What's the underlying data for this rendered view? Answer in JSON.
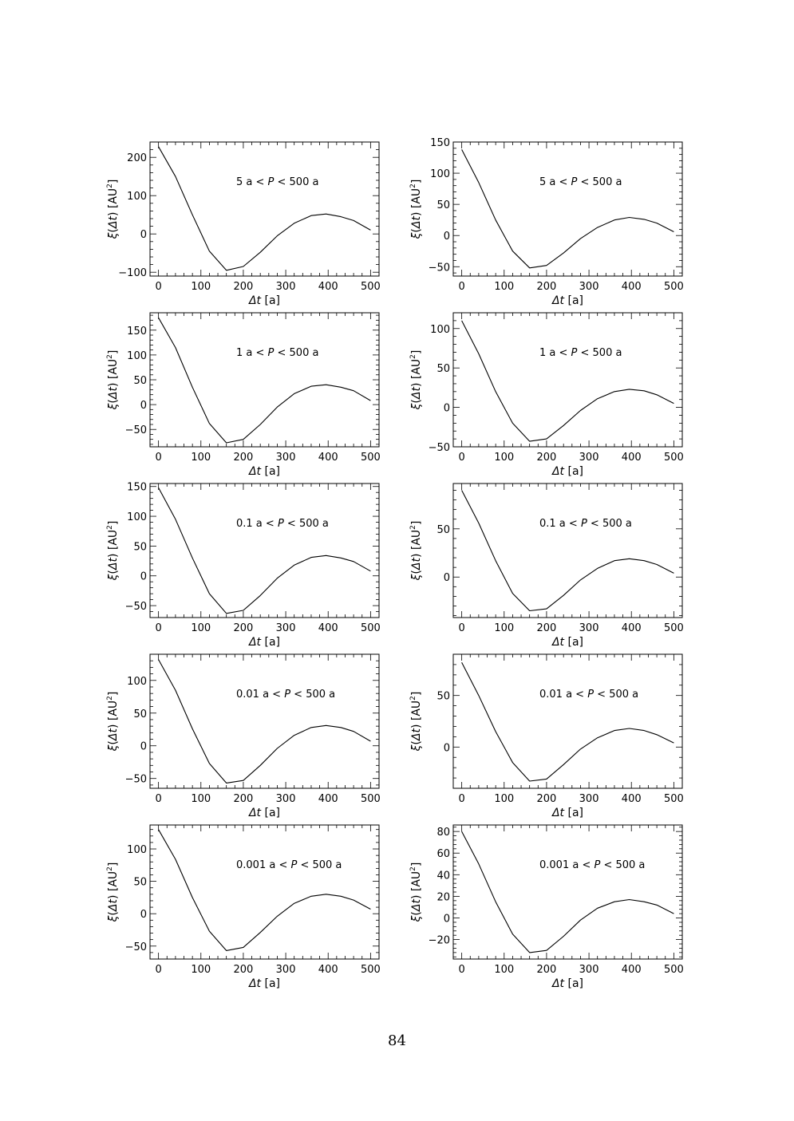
{
  "page_number": "84",
  "chart_data": [
    {
      "type": "line",
      "panel": "row1-left",
      "annotation": {
        "pre": "5 a",
        "var": "P",
        "post": "500 a"
      },
      "xlabel": {
        "var": "Δt",
        "unit": "[a]"
      },
      "ylabel": {
        "fn": "ξ",
        "arg": "Δt",
        "unit": "[AU",
        "exp": "2",
        "close": "]"
      },
      "xlim": [
        -20,
        520
      ],
      "ylim": [
        -110,
        240
      ],
      "xticks": [
        0,
        100,
        200,
        300,
        400,
        500
      ],
      "yticks": [
        -100,
        0,
        100,
        200
      ],
      "x": [
        0,
        40,
        80,
        120,
        160,
        200,
        240,
        280,
        320,
        360,
        395,
        430,
        460,
        500
      ],
      "y": [
        228,
        150,
        50,
        -45,
        -95,
        -85,
        -48,
        -5,
        28,
        48,
        52,
        45,
        35,
        10
      ]
    },
    {
      "type": "line",
      "panel": "row1-right",
      "annotation": {
        "pre": "5 a",
        "var": "P",
        "post": "500 a"
      },
      "xlabel": {
        "var": "Δt",
        "unit": "[a]"
      },
      "ylabel": {
        "fn": "ξ",
        "arg": "Δt",
        "unit": "[AU",
        "exp": "2",
        "close": "]"
      },
      "xlim": [
        -20,
        520
      ],
      "ylim": [
        -65,
        150
      ],
      "xticks": [
        0,
        100,
        200,
        300,
        400,
        500
      ],
      "yticks": [
        -50,
        0,
        50,
        100,
        150
      ],
      "x": [
        0,
        40,
        80,
        120,
        160,
        200,
        240,
        280,
        320,
        360,
        395,
        430,
        460,
        500
      ],
      "y": [
        138,
        85,
        25,
        -25,
        -52,
        -48,
        -28,
        -5,
        13,
        25,
        29,
        26,
        20,
        6
      ]
    },
    {
      "type": "line",
      "panel": "row2-left",
      "annotation": {
        "pre": "1 a",
        "var": "P",
        "post": "500 a"
      },
      "xlabel": {
        "var": "Δt",
        "unit": "[a]"
      },
      "ylabel": {
        "fn": "ξ",
        "arg": "Δt",
        "unit": "[AU",
        "exp": "2",
        "close": "]"
      },
      "xlim": [
        -20,
        520
      ],
      "ylim": [
        -85,
        185
      ],
      "xticks": [
        0,
        100,
        200,
        300,
        400,
        500
      ],
      "yticks": [
        -50,
        0,
        50,
        100,
        150
      ],
      "x": [
        0,
        40,
        80,
        120,
        160,
        200,
        240,
        280,
        320,
        360,
        395,
        430,
        460,
        500
      ],
      "y": [
        175,
        115,
        35,
        -38,
        -77,
        -70,
        -40,
        -5,
        22,
        37,
        40,
        35,
        28,
        8
      ]
    },
    {
      "type": "line",
      "panel": "row2-right",
      "annotation": {
        "pre": "1 a",
        "var": "P",
        "post": "500 a"
      },
      "xlabel": {
        "var": "Δt",
        "unit": "[a]"
      },
      "ylabel": {
        "fn": "ξ",
        "arg": "Δt",
        "unit": "[AU",
        "exp": "2",
        "close": "]"
      },
      "xlim": [
        -20,
        520
      ],
      "ylim": [
        -50,
        120
      ],
      "xticks": [
        0,
        100,
        200,
        300,
        400,
        500
      ],
      "yticks": [
        -50,
        0,
        50,
        100
      ],
      "x": [
        0,
        40,
        80,
        120,
        160,
        200,
        240,
        280,
        320,
        360,
        395,
        430,
        460,
        500
      ],
      "y": [
        110,
        68,
        20,
        -20,
        -43,
        -40,
        -23,
        -4,
        11,
        20,
        23,
        21,
        16,
        5
      ]
    },
    {
      "type": "line",
      "panel": "row3-left",
      "annotation": {
        "pre": "0.1 a",
        "var": "P",
        "post": "500 a"
      },
      "xlabel": {
        "var": "Δt",
        "unit": "[a]"
      },
      "ylabel": {
        "fn": "ξ",
        "arg": "Δt",
        "unit": "[AU",
        "exp": "2",
        "close": "]"
      },
      "xlim": [
        -20,
        520
      ],
      "ylim": [
        -70,
        155
      ],
      "xticks": [
        0,
        100,
        200,
        300,
        400,
        500
      ],
      "yticks": [
        -50,
        0,
        50,
        100,
        150
      ],
      "x": [
        0,
        40,
        80,
        120,
        160,
        200,
        240,
        280,
        320,
        360,
        395,
        430,
        460,
        500
      ],
      "y": [
        148,
        95,
        30,
        -30,
        -63,
        -58,
        -33,
        -4,
        18,
        31,
        34,
        30,
        24,
        8
      ]
    },
    {
      "type": "line",
      "panel": "row3-right",
      "annotation": {
        "pre": "0.1 a",
        "var": "P",
        "post": "500 a"
      },
      "xlabel": {
        "var": "Δt",
        "unit": "[a]"
      },
      "ylabel": {
        "fn": "ξ",
        "arg": "Δt",
        "unit": "[AU",
        "exp": "2",
        "close": "]"
      },
      "xlim": [
        -20,
        520
      ],
      "ylim": [
        -42,
        97
      ],
      "xticks": [
        0,
        100,
        200,
        300,
        400,
        500
      ],
      "yticks": [
        0,
        50
      ],
      "x": [
        0,
        40,
        80,
        120,
        160,
        200,
        240,
        280,
        320,
        360,
        395,
        430,
        460,
        500
      ],
      "y": [
        90,
        56,
        17,
        -17,
        -35,
        -33,
        -19,
        -3,
        9,
        17,
        19,
        17,
        13,
        4
      ]
    },
    {
      "type": "line",
      "panel": "row4-left",
      "annotation": {
        "pre": "0.01 a",
        "var": "P",
        "post": "500 a"
      },
      "xlabel": {
        "var": "Δt",
        "unit": "[a]"
      },
      "ylabel": {
        "fn": "ξ",
        "arg": "Δt",
        "unit": "[AU",
        "exp": "2",
        "close": "]"
      },
      "xlim": [
        -20,
        520
      ],
      "ylim": [
        -65,
        140
      ],
      "xticks": [
        0,
        100,
        200,
        300,
        400,
        500
      ],
      "yticks": [
        -50,
        0,
        50,
        100
      ],
      "x": [
        0,
        40,
        80,
        120,
        160,
        200,
        240,
        280,
        320,
        360,
        395,
        430,
        460,
        500
      ],
      "y": [
        132,
        85,
        26,
        -27,
        -57,
        -53,
        -30,
        -4,
        16,
        28,
        31,
        28,
        22,
        7
      ]
    },
    {
      "type": "line",
      "panel": "row4-right",
      "annotation": {
        "pre": "0.01 a",
        "var": "P",
        "post": "500 a"
      },
      "xlabel": {
        "var": "Δt",
        "unit": "[a]"
      },
      "ylabel": {
        "fn": "ξ",
        "arg": "Δt",
        "unit": "[AU",
        "exp": "2",
        "close": "]"
      },
      "xlim": [
        -20,
        520
      ],
      "ylim": [
        -40,
        90
      ],
      "xticks": [
        0,
        100,
        200,
        300,
        400,
        500
      ],
      "yticks": [
        0,
        50
      ],
      "x": [
        0,
        40,
        80,
        120,
        160,
        200,
        240,
        280,
        320,
        360,
        395,
        430,
        460,
        500
      ],
      "y": [
        82,
        50,
        15,
        -15,
        -33,
        -31,
        -17,
        -2,
        9,
        16,
        18,
        16,
        12,
        4
      ]
    },
    {
      "type": "line",
      "panel": "row5-left",
      "annotation": {
        "pre": "0.001 a",
        "var": "P",
        "post": "500 a"
      },
      "xlabel": {
        "var": "Δt",
        "unit": "[a]"
      },
      "ylabel": {
        "fn": "ξ",
        "arg": "Δt",
        "unit": "[AU",
        "exp": "2",
        "close": "]"
      },
      "xlim": [
        -20,
        520
      ],
      "ylim": [
        -70,
        137
      ],
      "xticks": [
        0,
        100,
        200,
        300,
        400,
        500
      ],
      "yticks": [
        -50,
        0,
        50,
        100
      ],
      "x": [
        0,
        40,
        80,
        120,
        160,
        200,
        240,
        280,
        320,
        360,
        395,
        430,
        460,
        500
      ],
      "y": [
        130,
        84,
        25,
        -27,
        -57,
        -52,
        -29,
        -4,
        16,
        27,
        30,
        27,
        21,
        7
      ]
    },
    {
      "type": "line",
      "panel": "row5-right",
      "annotation": {
        "pre": "0.001 a",
        "var": "P",
        "post": "500 a"
      },
      "xlabel": {
        "var": "Δt",
        "unit": "[a]"
      },
      "ylabel": {
        "fn": "ξ",
        "arg": "Δt",
        "unit": "[AU",
        "exp": "2",
        "close": "]"
      },
      "xlim": [
        -20,
        520
      ],
      "ylim": [
        -38,
        86
      ],
      "xticks": [
        0,
        100,
        200,
        300,
        400,
        500
      ],
      "yticks": [
        -20,
        0,
        20,
        40,
        60,
        80
      ],
      "x": [
        0,
        40,
        80,
        120,
        160,
        200,
        240,
        280,
        320,
        360,
        395,
        430,
        460,
        500
      ],
      "y": [
        80,
        50,
        15,
        -15,
        -32,
        -30,
        -17,
        -2,
        9,
        15,
        17,
        15,
        12,
        4
      ]
    }
  ]
}
